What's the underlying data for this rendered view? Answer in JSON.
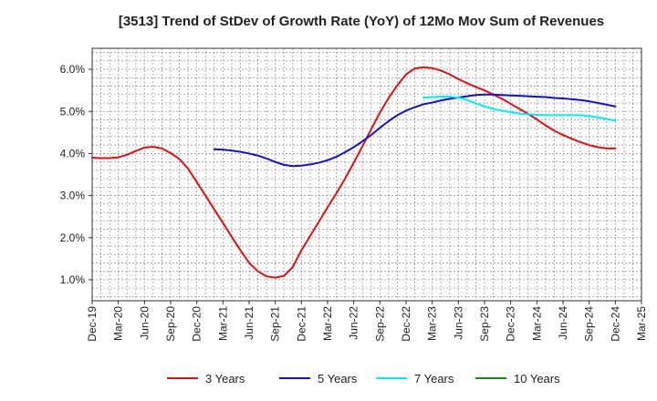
{
  "chart_data": {
    "type": "line",
    "title": "[3513]  Trend of StDev of Growth Rate (YoY) of 12Mo Mov Sum of Revenues",
    "xlabel": "",
    "ylabel": "",
    "ylim": [
      0.5,
      6.5
    ],
    "yticks": [
      1.0,
      2.0,
      3.0,
      4.0,
      5.0,
      6.0
    ],
    "ytick_labels": [
      "1.0%",
      "2.0%",
      "3.0%",
      "4.0%",
      "5.0%",
      "6.0%"
    ],
    "x_categories": [
      "Dec-19",
      "Mar-20",
      "Jun-20",
      "Sep-20",
      "Dec-20",
      "Mar-21",
      "Jun-21",
      "Sep-21",
      "Dec-21",
      "Mar-22",
      "Jun-22",
      "Sep-22",
      "Dec-22",
      "Mar-23",
      "Jun-23",
      "Sep-23",
      "Dec-23",
      "Mar-24",
      "Jun-24",
      "Sep-24",
      "Dec-24",
      "Mar-25"
    ],
    "grid": true,
    "legend_position": "bottom",
    "series": [
      {
        "name": "3 Years",
        "color": "#dd1111",
        "points": [
          [
            0,
            3.9
          ],
          [
            0.333,
            3.89
          ],
          [
            0.667,
            3.89
          ],
          [
            1,
            3.91
          ],
          [
            1.333,
            3.97
          ],
          [
            1.667,
            4.06
          ],
          [
            2,
            4.14
          ],
          [
            2.333,
            4.16
          ],
          [
            2.667,
            4.12
          ],
          [
            3,
            4.01
          ],
          [
            3.333,
            3.87
          ],
          [
            3.667,
            3.64
          ],
          [
            4,
            3.32
          ],
          [
            4.333,
            3.0
          ],
          [
            4.667,
            2.67
          ],
          [
            5,
            2.35
          ],
          [
            5.333,
            2.02
          ],
          [
            5.667,
            1.7
          ],
          [
            6,
            1.4
          ],
          [
            6.333,
            1.2
          ],
          [
            6.667,
            1.08
          ],
          [
            7,
            1.05
          ],
          [
            7.333,
            1.09
          ],
          [
            7.667,
            1.3
          ],
          [
            8,
            1.7
          ],
          [
            8.333,
            2.04
          ],
          [
            8.667,
            2.38
          ],
          [
            9,
            2.72
          ],
          [
            9.333,
            3.05
          ],
          [
            9.667,
            3.4
          ],
          [
            10,
            3.78
          ],
          [
            10.333,
            4.17
          ],
          [
            10.667,
            4.58
          ],
          [
            11,
            4.97
          ],
          [
            11.333,
            5.32
          ],
          [
            11.667,
            5.62
          ],
          [
            12,
            5.88
          ],
          [
            12.333,
            6.02
          ],
          [
            12.667,
            6.05
          ],
          [
            13,
            6.03
          ],
          [
            13.333,
            5.97
          ],
          [
            13.667,
            5.88
          ],
          [
            14,
            5.77
          ],
          [
            14.333,
            5.67
          ],
          [
            14.667,
            5.58
          ],
          [
            15,
            5.5
          ],
          [
            15.333,
            5.4
          ],
          [
            15.667,
            5.3
          ],
          [
            16,
            5.18
          ],
          [
            16.333,
            5.06
          ],
          [
            16.667,
            4.94
          ],
          [
            17,
            4.81
          ],
          [
            17.333,
            4.67
          ],
          [
            17.667,
            4.54
          ],
          [
            18,
            4.44
          ],
          [
            18.333,
            4.35
          ],
          [
            18.667,
            4.27
          ],
          [
            19,
            4.2
          ],
          [
            19.333,
            4.15
          ],
          [
            19.667,
            4.12
          ],
          [
            20,
            4.12
          ]
        ]
      },
      {
        "name": "5 Years",
        "color": "#1111cc",
        "points": [
          [
            4.667,
            4.1
          ],
          [
            5,
            4.09
          ],
          [
            5.333,
            4.07
          ],
          [
            5.667,
            4.04
          ],
          [
            6,
            4.0
          ],
          [
            6.333,
            3.95
          ],
          [
            6.667,
            3.88
          ],
          [
            7,
            3.8
          ],
          [
            7.333,
            3.73
          ],
          [
            7.667,
            3.7
          ],
          [
            8,
            3.71
          ],
          [
            8.333,
            3.74
          ],
          [
            8.667,
            3.78
          ],
          [
            9,
            3.84
          ],
          [
            9.333,
            3.92
          ],
          [
            9.667,
            4.03
          ],
          [
            10,
            4.15
          ],
          [
            10.333,
            4.29
          ],
          [
            10.667,
            4.44
          ],
          [
            11,
            4.61
          ],
          [
            11.333,
            4.77
          ],
          [
            11.667,
            4.91
          ],
          [
            12,
            5.02
          ],
          [
            12.333,
            5.1
          ],
          [
            12.667,
            5.17
          ],
          [
            13,
            5.21
          ],
          [
            13.333,
            5.26
          ],
          [
            13.667,
            5.3
          ],
          [
            14,
            5.33
          ],
          [
            14.333,
            5.36
          ],
          [
            14.667,
            5.39
          ],
          [
            15,
            5.4
          ],
          [
            15.333,
            5.4
          ],
          [
            15.667,
            5.39
          ],
          [
            16,
            5.38
          ],
          [
            16.333,
            5.37
          ],
          [
            16.667,
            5.36
          ],
          [
            17,
            5.35
          ],
          [
            17.333,
            5.34
          ],
          [
            17.667,
            5.32
          ],
          [
            18,
            5.31
          ],
          [
            18.333,
            5.29
          ],
          [
            18.667,
            5.27
          ],
          [
            19,
            5.24
          ],
          [
            19.333,
            5.2
          ],
          [
            19.667,
            5.16
          ],
          [
            20,
            5.12
          ]
        ]
      },
      {
        "name": "7 Years",
        "color": "#00eeee",
        "points": [
          [
            12.667,
            5.33
          ],
          [
            13,
            5.34
          ],
          [
            13.333,
            5.35
          ],
          [
            13.667,
            5.35
          ],
          [
            14,
            5.33
          ],
          [
            14.333,
            5.27
          ],
          [
            14.667,
            5.19
          ],
          [
            15,
            5.12
          ],
          [
            15.333,
            5.06
          ],
          [
            15.667,
            5.02
          ],
          [
            16,
            4.98
          ],
          [
            16.333,
            4.95
          ],
          [
            16.667,
            4.93
          ],
          [
            17,
            4.92
          ],
          [
            17.333,
            4.91
          ],
          [
            17.667,
            4.91
          ],
          [
            18,
            4.91
          ],
          [
            18.333,
            4.91
          ],
          [
            18.667,
            4.91
          ],
          [
            19,
            4.89
          ],
          [
            19.333,
            4.86
          ],
          [
            19.667,
            4.82
          ],
          [
            20,
            4.78
          ]
        ]
      },
      {
        "name": "10 Years",
        "color": "#118811",
        "points": []
      }
    ]
  }
}
